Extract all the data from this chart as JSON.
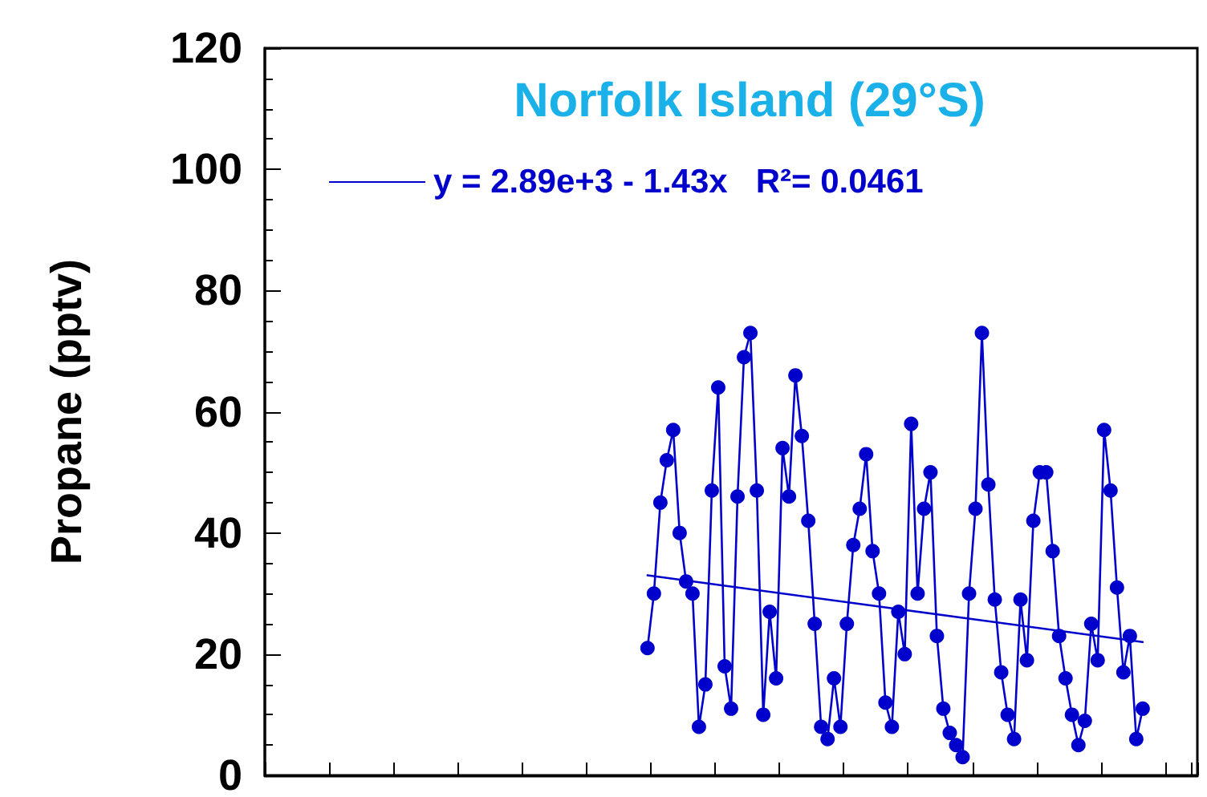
{
  "chart_data": {
    "type": "line",
    "title": "Norfolk Island (29°S)",
    "ylabel": "Propane (pptv)",
    "categories": [
      null,
      null,
      null,
      null,
      null,
      null,
      null,
      null,
      null,
      null,
      null,
      null,
      null,
      null,
      null,
      null,
      null,
      null,
      null,
      null,
      null,
      null,
      null,
      null,
      null,
      null,
      null,
      null,
      null,
      null,
      null,
      null,
      null,
      null,
      null,
      null,
      null,
      null,
      null,
      null,
      null,
      null,
      null,
      null,
      null,
      null,
      null,
      null,
      null,
      null,
      null,
      null,
      null,
      null,
      null,
      null,
      null,
      null,
      null,
      null,
      null,
      null,
      null,
      null,
      null,
      null,
      null,
      null,
      null,
      null,
      null,
      null,
      null,
      null,
      null,
      null,
      null,
      null,
      null,
      null,
      null,
      null,
      null,
      null,
      null,
      null,
      null,
      null,
      null,
      null,
      null,
      null,
      null,
      null,
      null,
      null,
      null,
      null,
      null,
      null,
      null,
      null,
      null,
      null,
      null,
      null,
      null,
      null,
      null,
      null,
      null,
      null,
      null,
      null,
      null,
      null,
      null,
      null,
      null,
      null,
      null,
      null,
      null,
      null,
      null,
      null,
      null,
      null,
      null,
      null,
      null,
      null,
      null,
      null,
      null,
      null,
      null,
      null,
      null,
      null,
      null,
      null,
      null,
      null,
      null
    ],
    "series": [
      {
        "color": "#0000cc",
        "marker": "circle",
        "values": [
          null,
          null,
          null,
          null,
          null,
          null,
          null,
          null,
          null,
          null,
          null,
          null,
          null,
          null,
          null,
          null,
          null,
          null,
          null,
          null,
          null,
          null,
          null,
          null,
          null,
          null,
          null,
          null,
          null,
          null,
          null,
          null,
          null,
          null,
          null,
          null,
          null,
          null,
          null,
          null,
          null,
          null,
          null,
          null,
          null,
          null,
          null,
          null,
          null,
          null,
          null,
          null,
          null,
          null,
          null,
          null,
          null,
          null,
          null,
          21,
          30,
          45,
          52,
          57,
          40,
          32,
          30,
          8,
          15,
          47,
          64,
          18,
          11,
          46,
          69,
          73,
          47,
          10,
          27,
          16,
          54,
          46,
          66,
          56,
          42,
          25,
          8,
          6,
          16,
          8,
          25,
          38,
          44,
          53,
          37,
          30,
          12,
          8,
          27,
          20,
          58,
          30,
          44,
          50,
          23,
          11,
          7,
          5,
          3,
          30,
          44,
          73,
          48,
          29,
          17,
          10,
          6,
          29,
          19,
          42,
          50,
          50,
          37,
          23,
          16,
          10,
          5,
          9,
          25,
          19,
          57,
          47,
          31,
          17,
          23,
          6,
          11,
          null,
          null,
          null,
          null,
          null,
          null,
          null,
          null
        ]
      },
      {
        "type": "line",
        "name": "y = 2.89e+3 - 1.43x   R²= 0.0461",
        "color": "#0000cc",
        "marker": "none",
        "values": [
          null,
          null,
          null,
          null,
          null,
          null,
          null,
          null,
          null,
          null,
          null,
          null,
          null,
          null,
          null,
          null,
          null,
          null,
          null,
          null,
          null,
          null,
          null,
          null,
          null,
          null,
          null,
          null,
          null,
          null,
          null,
          null,
          null,
          null,
          null,
          null,
          null,
          null,
          null,
          null,
          null,
          null,
          null,
          null,
          null,
          null,
          null,
          null,
          null,
          null,
          null,
          null,
          null,
          null,
          null,
          null,
          null,
          null,
          null,
          33,
          null,
          null,
          null,
          null,
          null,
          null,
          null,
          null,
          null,
          null,
          null,
          null,
          null,
          null,
          null,
          null,
          null,
          null,
          null,
          null,
          null,
          null,
          null,
          null,
          null,
          null,
          null,
          null,
          null,
          null,
          null,
          null,
          null,
          null,
          null,
          null,
          null,
          null,
          null,
          null,
          null,
          null,
          null,
          null,
          null,
          null,
          null,
          null,
          null,
          null,
          null,
          null,
          null,
          null,
          null,
          null,
          null,
          null,
          null,
          null,
          null,
          null,
          null,
          null,
          null,
          null,
          null,
          null,
          null,
          null,
          null,
          null,
          null,
          null,
          null,
          null,
          22,
          null,
          null,
          null,
          null,
          null,
          null,
          null,
          null
        ]
      }
    ],
    "ylim": [
      0,
      120
    ],
    "yticks": [
      0,
      20,
      40,
      60,
      80,
      100,
      120
    ],
    "grid": false,
    "legend": "top",
    "tick_labels": "y"
  }
}
